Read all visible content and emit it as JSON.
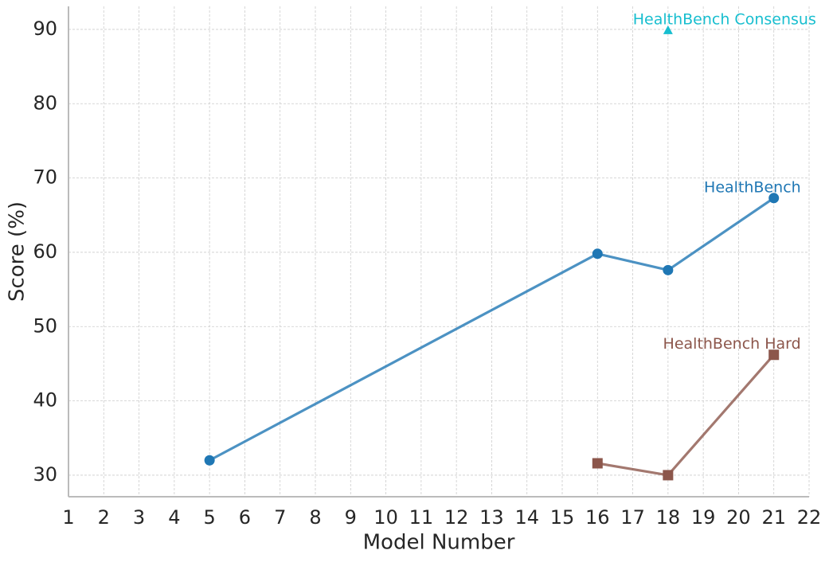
{
  "chart_data": {
    "type": "line",
    "x_label": "Model Number",
    "y_label": "Score (%)",
    "xlim": [
      1,
      22
    ],
    "ylim": [
      27.1,
      93.1
    ],
    "xticks": [
      1,
      2,
      3,
      4,
      5,
      6,
      7,
      8,
      9,
      10,
      11,
      12,
      13,
      14,
      15,
      16,
      17,
      18,
      19,
      20,
      21,
      22
    ],
    "yticks": [
      30,
      40,
      50,
      60,
      70,
      80,
      90
    ],
    "grid": true,
    "series": [
      {
        "name": "HealthBench",
        "color": "#1f77b4",
        "marker": "circle",
        "x": [
          5,
          16,
          18,
          21
        ],
        "values": [
          32,
          59.8,
          57.6,
          67.3
        ]
      },
      {
        "name": "HealthBench Hard",
        "color": "#8c564b",
        "marker": "square",
        "x": [
          16,
          18,
          21
        ],
        "values": [
          31.6,
          30,
          46.2
        ]
      },
      {
        "name": "HealthBench Consensus",
        "color": "#17becf",
        "marker": "triangle",
        "x": [
          18
        ],
        "values": [
          89.9
        ]
      }
    ]
  }
}
